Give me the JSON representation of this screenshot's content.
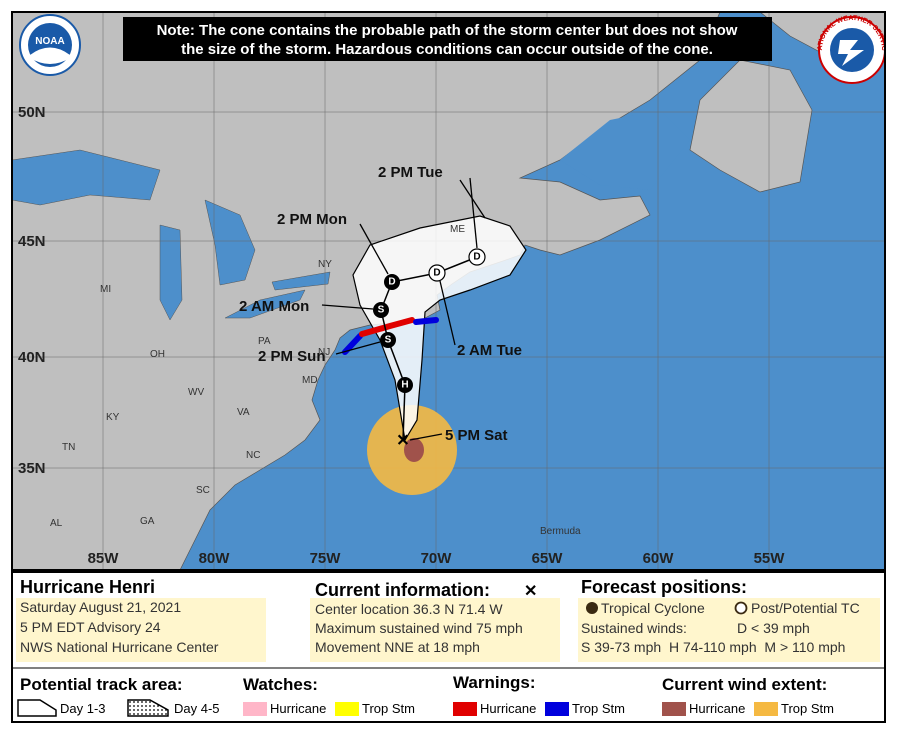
{
  "note": [
    "Note: The cone contains the probable path of the storm center but does not show",
    "the size of the storm. Hazardous conditions can occur outside of the cone."
  ],
  "logos": {
    "noaa": "NOAA",
    "nws": "NATIONAL WEATHER SERVICE"
  },
  "latitude_labels": [
    "50N",
    "45N",
    "40N",
    "35N"
  ],
  "longitude_labels": [
    "85W",
    "80W",
    "75W",
    "70W",
    "65W",
    "60W",
    "55W"
  ],
  "place_labels": [
    "MI",
    "NY",
    "PA",
    "OH",
    "WV",
    "VA",
    "KY",
    "TN",
    "NC",
    "SC",
    "GA",
    "AL",
    "ME",
    "NJ",
    "MD",
    "Bermuda"
  ],
  "forecast_labels": [
    "2 PM Tue",
    "2 PM Mon",
    "2 AM Mon",
    "2 PM Sun",
    "2 AM Tue",
    "5 PM Sat"
  ],
  "forecast_markers": [
    "H",
    "S",
    "S",
    "D",
    "D",
    "D"
  ],
  "current_symbol": "✕",
  "legend": {
    "storm": "Hurricane Henri",
    "storm_lines": [
      "Saturday August 21, 2021",
      "5 PM EDT Advisory 24",
      "NWS National Hurricane Center"
    ],
    "current_title": "Current information:",
    "current_lines": [
      "Center location 36.3 N 71.4 W",
      "Maximum sustained wind 75 mph",
      "Movement NNE at 18 mph"
    ],
    "forecast_title": "Forecast positions:",
    "forecast_types": [
      "Tropical Cyclone",
      "Post/Potential TC"
    ],
    "sustained_title": "Sustained winds:",
    "sustained_d": "D < 39 mph",
    "sustained_line": "S 39-73 mph  H 74-110 mph  M > 110 mph",
    "track_title": "Potential track area:",
    "track_items": [
      "Day 1-3",
      "Day 4-5"
    ],
    "watches_title": "Watches:",
    "watches_items": [
      "Hurricane",
      "Trop Stm"
    ],
    "warnings_title": "Warnings:",
    "warnings_items": [
      "Hurricane",
      "Trop Stm"
    ],
    "wind_title": "Current wind extent:",
    "wind_items": [
      "Hurricane",
      "Trop Stm"
    ]
  }
}
